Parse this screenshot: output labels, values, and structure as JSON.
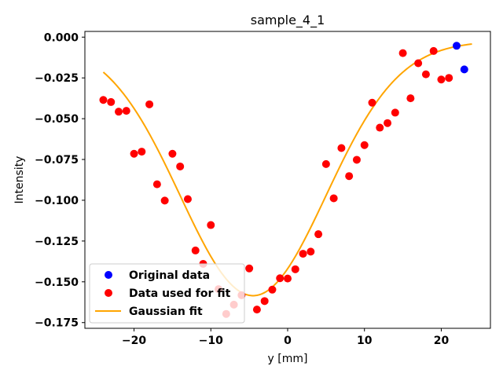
{
  "chart_data": {
    "type": "scatter",
    "title": "sample_4_1",
    "xlabel": "y [mm]",
    "ylabel": "Intensity",
    "xlim": [
      -26.4,
      26.4
    ],
    "ylim": [
      -0.1785,
      0.0035
    ],
    "xticks": [
      -20,
      -10,
      0,
      10,
      20
    ],
    "xtick_labels": [
      "−20",
      "−10",
      "0",
      "10",
      "20"
    ],
    "yticks": [
      0.0,
      -0.025,
      -0.05,
      -0.075,
      -0.1,
      -0.125,
      -0.15,
      -0.175
    ],
    "ytick_labels": [
      "0.000",
      "−0.025",
      "−0.050",
      "−0.075",
      "−0.100",
      "−0.125",
      "−0.150",
      "−0.175"
    ],
    "grid": false,
    "legend_position": "lower-left",
    "series": [
      {
        "name": "Original data",
        "kind": "scatter",
        "color": "#0000ff",
        "points": [
          [
            22,
            -0.0053
          ],
          [
            23,
            -0.0198
          ]
        ]
      },
      {
        "name": "Data used for fit",
        "kind": "scatter",
        "color": "#ff0000",
        "points": [
          [
            -24,
            -0.0385
          ],
          [
            -23,
            -0.0398
          ],
          [
            -22,
            -0.0457
          ],
          [
            -21,
            -0.0452
          ],
          [
            -20,
            -0.0715
          ],
          [
            -19,
            -0.0702
          ],
          [
            -18,
            -0.0412
          ],
          [
            -17,
            -0.0902
          ],
          [
            -16,
            -0.1002
          ],
          [
            -15,
            -0.0715
          ],
          [
            -14,
            -0.0793
          ],
          [
            -13,
            -0.0993
          ],
          [
            -12,
            -0.1308
          ],
          [
            -11,
            -0.139
          ],
          [
            -10,
            -0.1152
          ],
          [
            -9,
            -0.1545
          ],
          [
            -8,
            -0.1697
          ],
          [
            -7,
            -0.164
          ],
          [
            -6,
            -0.1582
          ],
          [
            -5,
            -0.1418
          ],
          [
            -4,
            -0.167
          ],
          [
            -3,
            -0.1618
          ],
          [
            -2,
            -0.1548
          ],
          [
            -1,
            -0.1478
          ],
          [
            0,
            -0.148
          ],
          [
            1,
            -0.1423
          ],
          [
            2,
            -0.1328
          ],
          [
            3,
            -0.1315
          ],
          [
            4,
            -0.1208
          ],
          [
            5,
            -0.0778
          ],
          [
            6,
            -0.0988
          ],
          [
            7,
            -0.068
          ],
          [
            8,
            -0.0852
          ],
          [
            9,
            -0.0752
          ],
          [
            10,
            -0.0662
          ],
          [
            11,
            -0.0402
          ],
          [
            12,
            -0.0555
          ],
          [
            13,
            -0.0527
          ],
          [
            14,
            -0.0463
          ],
          [
            15,
            -0.0098
          ],
          [
            16,
            -0.0375
          ],
          [
            17,
            -0.016
          ],
          [
            18,
            -0.0228
          ],
          [
            19,
            -0.0085
          ],
          [
            20,
            -0.026
          ],
          [
            21,
            -0.025
          ]
        ]
      },
      {
        "name": "Gaussian fit",
        "kind": "line",
        "color": "#ffa500",
        "fit": {
          "model": "gaussian",
          "amplitude": -0.156,
          "center": -4.5,
          "sigma": 9.5,
          "offset": -0.0025,
          "x_range": [
            -24,
            24
          ]
        }
      }
    ]
  }
}
